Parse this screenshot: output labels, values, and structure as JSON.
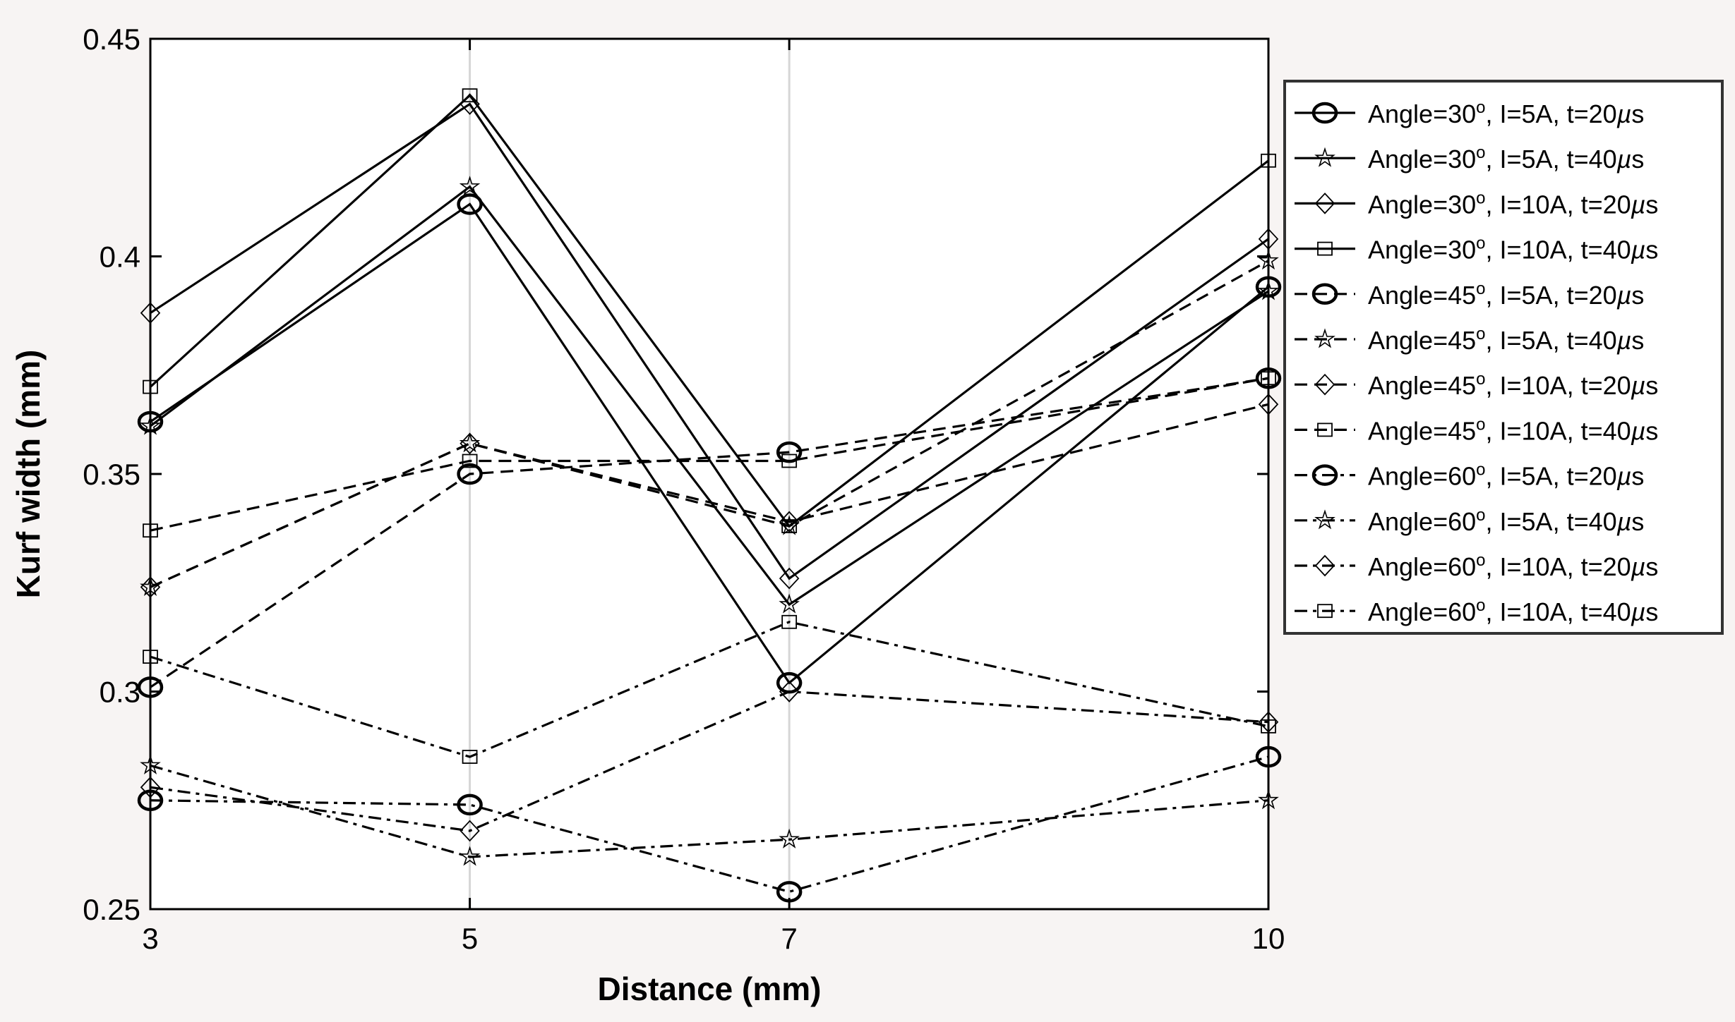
{
  "chart_data": {
    "type": "line",
    "title": "",
    "xlabel": "Distance (mm)",
    "ylabel": "Kurf width (mm)",
    "x": [
      3,
      5,
      7,
      10
    ],
    "xticks": [
      "3",
      "5",
      "7",
      "10"
    ],
    "yticks": [
      "0.25",
      "0.3",
      "0.35",
      "0.4",
      "0.45"
    ],
    "ytick_values": [
      0.25,
      0.3,
      0.35,
      0.4,
      0.45
    ],
    "xlim": [
      3,
      10
    ],
    "ylim": [
      0.25,
      0.45
    ],
    "grid": "vertical lines at x ticks",
    "legend_position": "outside-right",
    "series": [
      {
        "name": "Angle=30°, I=5A, t=20µs",
        "label_main": "Angle=30",
        "label_rest": ", I=5A, t=20",
        "unit": "s",
        "marker": "circle",
        "style": "solid",
        "values": [
          0.362,
          0.412,
          0.302,
          0.393
        ]
      },
      {
        "name": "Angle=30°, I=5A, t=40µs",
        "label_main": "Angle=30",
        "label_rest": ", I=5A, t=40",
        "unit": "s",
        "marker": "star",
        "style": "solid",
        "values": [
          0.361,
          0.416,
          0.32,
          0.392
        ]
      },
      {
        "name": "Angle=30°, I=10A, t=20µs",
        "label_main": "Angle=30",
        "label_rest": ", I=10A, t=20",
        "unit": "s",
        "marker": "diamond",
        "style": "solid",
        "values": [
          0.387,
          0.435,
          0.326,
          0.404
        ]
      },
      {
        "name": "Angle=30°, I=10A, t=40µs",
        "label_main": "Angle=30",
        "label_rest": ", I=10A, t=40",
        "unit": "s",
        "marker": "square",
        "style": "solid",
        "values": [
          0.37,
          0.437,
          0.338,
          0.422
        ]
      },
      {
        "name": "Angle=45°, I=5A, t=20µs",
        "label_main": "Angle=45",
        "label_rest": ", I=5A, t=20",
        "unit": "s",
        "marker": "circle",
        "style": "dashed",
        "values": [
          0.301,
          0.35,
          0.355,
          0.372
        ]
      },
      {
        "name": "Angle=45°, I=5A, t=40µs",
        "label_main": "Angle=45",
        "label_rest": ", I=5A, t=40",
        "unit": "s",
        "marker": "star",
        "style": "dashed",
        "values": [
          0.324,
          0.357,
          0.338,
          0.399
        ]
      },
      {
        "name": "Angle=45°, I=10A, t=20µs",
        "label_main": "Angle=45",
        "label_rest": ", I=10A, t=20",
        "unit": "s",
        "marker": "diamond",
        "style": "dashed",
        "values": [
          0.324,
          0.357,
          0.339,
          0.366
        ]
      },
      {
        "name": "Angle=45°, I=10A, t=40µs",
        "label_main": "Angle=45",
        "label_rest": ", I=10A, t=40",
        "unit": "s",
        "marker": "square",
        "style": "dashed",
        "values": [
          0.337,
          0.353,
          0.353,
          0.372
        ]
      },
      {
        "name": "Angle=60°, I=5A, t=20µs",
        "label_main": "Angle=60",
        "label_rest": ", I=5A, t=20",
        "unit": "s",
        "marker": "circle",
        "style": "dashdot",
        "values": [
          0.275,
          0.274,
          0.254,
          0.285
        ]
      },
      {
        "name": "Angle=60°, I=5A, t=40µs",
        "label_main": "Angle=60",
        "label_rest": ", I=5A, t=40",
        "unit": "s",
        "marker": "star",
        "style": "dashdot",
        "values": [
          0.283,
          0.262,
          0.266,
          0.275
        ]
      },
      {
        "name": "Angle=60°, I=10A, t=20µs",
        "label_main": "Angle=60",
        "label_rest": ", I=10A, t=20",
        "unit": "s",
        "marker": "diamond",
        "style": "dashdot",
        "values": [
          0.278,
          0.268,
          0.3,
          0.293
        ]
      },
      {
        "name": "Angle=60°, I=10A, t=40µs",
        "label_main": "Angle=60",
        "label_rest": ", I=10A, t=40",
        "unit": "s",
        "marker": "square",
        "style": "dashdot",
        "values": [
          0.308,
          0.285,
          0.316,
          0.292
        ]
      }
    ],
    "degree_symbol": "o",
    "mu_symbol": "µ"
  }
}
